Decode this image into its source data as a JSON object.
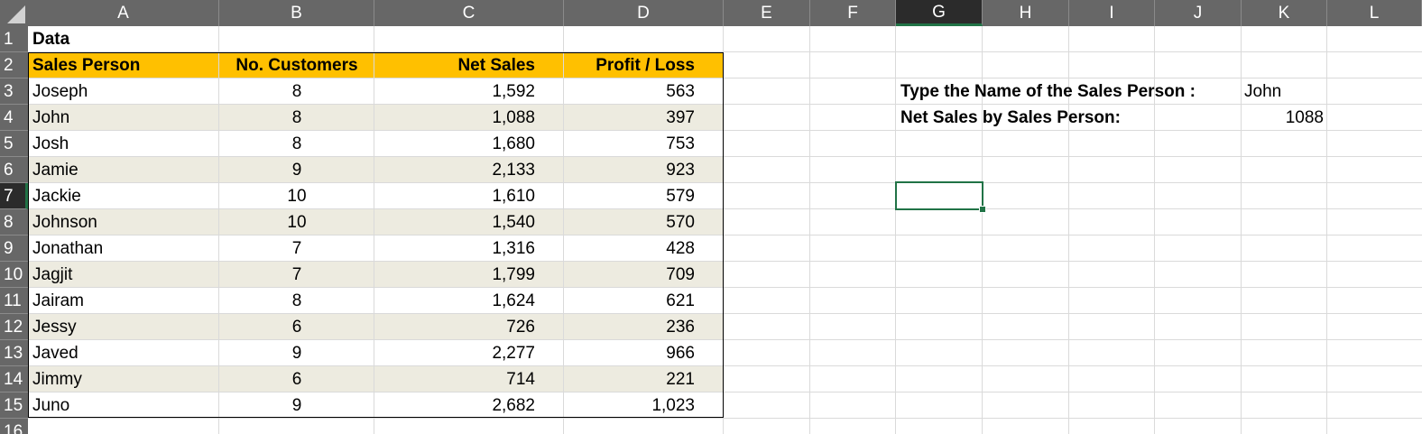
{
  "columns": [
    "A",
    "B",
    "C",
    "D",
    "E",
    "F",
    "G",
    "H",
    "I",
    "J",
    "K",
    "L"
  ],
  "rows": [
    "1",
    "2",
    "3",
    "4",
    "5",
    "6",
    "7",
    "8",
    "9",
    "10",
    "11",
    "12",
    "13",
    "14",
    "15",
    "16"
  ],
  "selected_column": "G",
  "selected_row": "7",
  "accent_colors": {
    "header_fill": "#ffc000",
    "band_fill": "#edebe0",
    "selection": "#217346"
  },
  "title_cell": "Data",
  "table": {
    "headers": [
      "Sales Person",
      "No. Customers",
      "Net Sales",
      "Profit / Loss"
    ],
    "rows": [
      [
        "Joseph",
        "8",
        "1,592",
        "563"
      ],
      [
        "John",
        "8",
        "1,088",
        "397"
      ],
      [
        "Josh",
        "8",
        "1,680",
        "753"
      ],
      [
        "Jamie",
        "9",
        "2,133",
        "923"
      ],
      [
        "Jackie",
        "10",
        "1,610",
        "579"
      ],
      [
        "Johnson",
        "10",
        "1,540",
        "570"
      ],
      [
        "Jonathan",
        "7",
        "1,316",
        "428"
      ],
      [
        "Jagjit",
        "7",
        "1,799",
        "709"
      ],
      [
        "Jairam",
        "8",
        "1,624",
        "621"
      ],
      [
        "Jessy",
        "6",
        "726",
        "236"
      ],
      [
        "Javed",
        "9",
        "2,277",
        "966"
      ],
      [
        "Jimmy",
        "6",
        "714",
        "221"
      ],
      [
        "Juno",
        "9",
        "2,682",
        "1,023"
      ]
    ]
  },
  "lookup": {
    "prompt_label": "Type the Name of the Sales Person :",
    "prompt_value": "John",
    "result_label": "Net Sales by Sales Person:",
    "result_value": "1088"
  }
}
